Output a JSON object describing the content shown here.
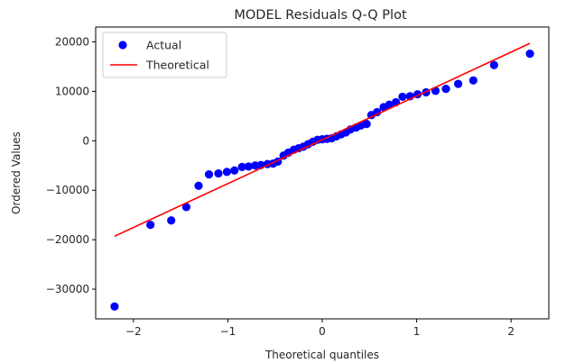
{
  "chart_data": {
    "type": "scatter",
    "title": "MODEL Residuals Q-Q Plot",
    "xlabel": "Theoretical quantiles",
    "ylabel": "Ordered Values",
    "xlim": [
      -2.4,
      2.4
    ],
    "ylim": [
      -36000,
      23000
    ],
    "x_ticks": [
      -2,
      -1,
      0,
      1,
      2
    ],
    "x_tick_labels": [
      "−2",
      "−1",
      "0",
      "1",
      "2"
    ],
    "y_ticks": [
      -30000,
      -20000,
      -10000,
      0,
      10000,
      20000
    ],
    "y_tick_labels": [
      "−30000",
      "−20000",
      "−10000",
      "0",
      "10000",
      "20000"
    ],
    "grid": false,
    "legend": {
      "placement": "top-left",
      "entries": [
        {
          "label": "Actual",
          "marker": "circle",
          "color": "#0000ff"
        },
        {
          "label": "Theoretical",
          "marker": "line",
          "color": "#ff0000"
        }
      ]
    },
    "series": [
      {
        "name": "Actual",
        "kind": "scatter",
        "color": "#0000ff",
        "points": [
          [
            -2.2,
            -33500
          ],
          [
            -1.82,
            -17000
          ],
          [
            -1.6,
            -16100
          ],
          [
            -1.44,
            -13400
          ],
          [
            -1.31,
            -9100
          ],
          [
            -1.2,
            -6800
          ],
          [
            -1.1,
            -6600
          ],
          [
            -1.01,
            -6300
          ],
          [
            -0.93,
            -6000
          ],
          [
            -0.85,
            -5300
          ],
          [
            -0.78,
            -5200
          ],
          [
            -0.71,
            -5000
          ],
          [
            -0.65,
            -4900
          ],
          [
            -0.58,
            -4700
          ],
          [
            -0.52,
            -4600
          ],
          [
            -0.47,
            -4200
          ],
          [
            -0.41,
            -3000
          ],
          [
            -0.36,
            -2400
          ],
          [
            -0.3,
            -1800
          ],
          [
            -0.25,
            -1500
          ],
          [
            -0.2,
            -1200
          ],
          [
            -0.15,
            -700
          ],
          [
            -0.1,
            -200
          ],
          [
            -0.05,
            200
          ],
          [
            0.0,
            300
          ],
          [
            0.05,
            400
          ],
          [
            0.1,
            500
          ],
          [
            0.15,
            900
          ],
          [
            0.2,
            1300
          ],
          [
            0.25,
            1700
          ],
          [
            0.3,
            2300
          ],
          [
            0.36,
            2700
          ],
          [
            0.41,
            3100
          ],
          [
            0.47,
            3400
          ],
          [
            0.52,
            5200
          ],
          [
            0.58,
            5800
          ],
          [
            0.65,
            6800
          ],
          [
            0.71,
            7300
          ],
          [
            0.78,
            7800
          ],
          [
            0.85,
            8900
          ],
          [
            0.93,
            9000
          ],
          [
            1.01,
            9400
          ],
          [
            1.1,
            9800
          ],
          [
            1.2,
            10100
          ],
          [
            1.31,
            10500
          ],
          [
            1.44,
            11500
          ],
          [
            1.6,
            12200
          ],
          [
            1.82,
            15300
          ],
          [
            2.2,
            17600
          ]
        ]
      },
      {
        "name": "Theoretical",
        "kind": "line",
        "color": "#ff0000",
        "points": [
          [
            -2.2,
            -19300
          ],
          [
            2.2,
            19700
          ]
        ]
      }
    ]
  }
}
